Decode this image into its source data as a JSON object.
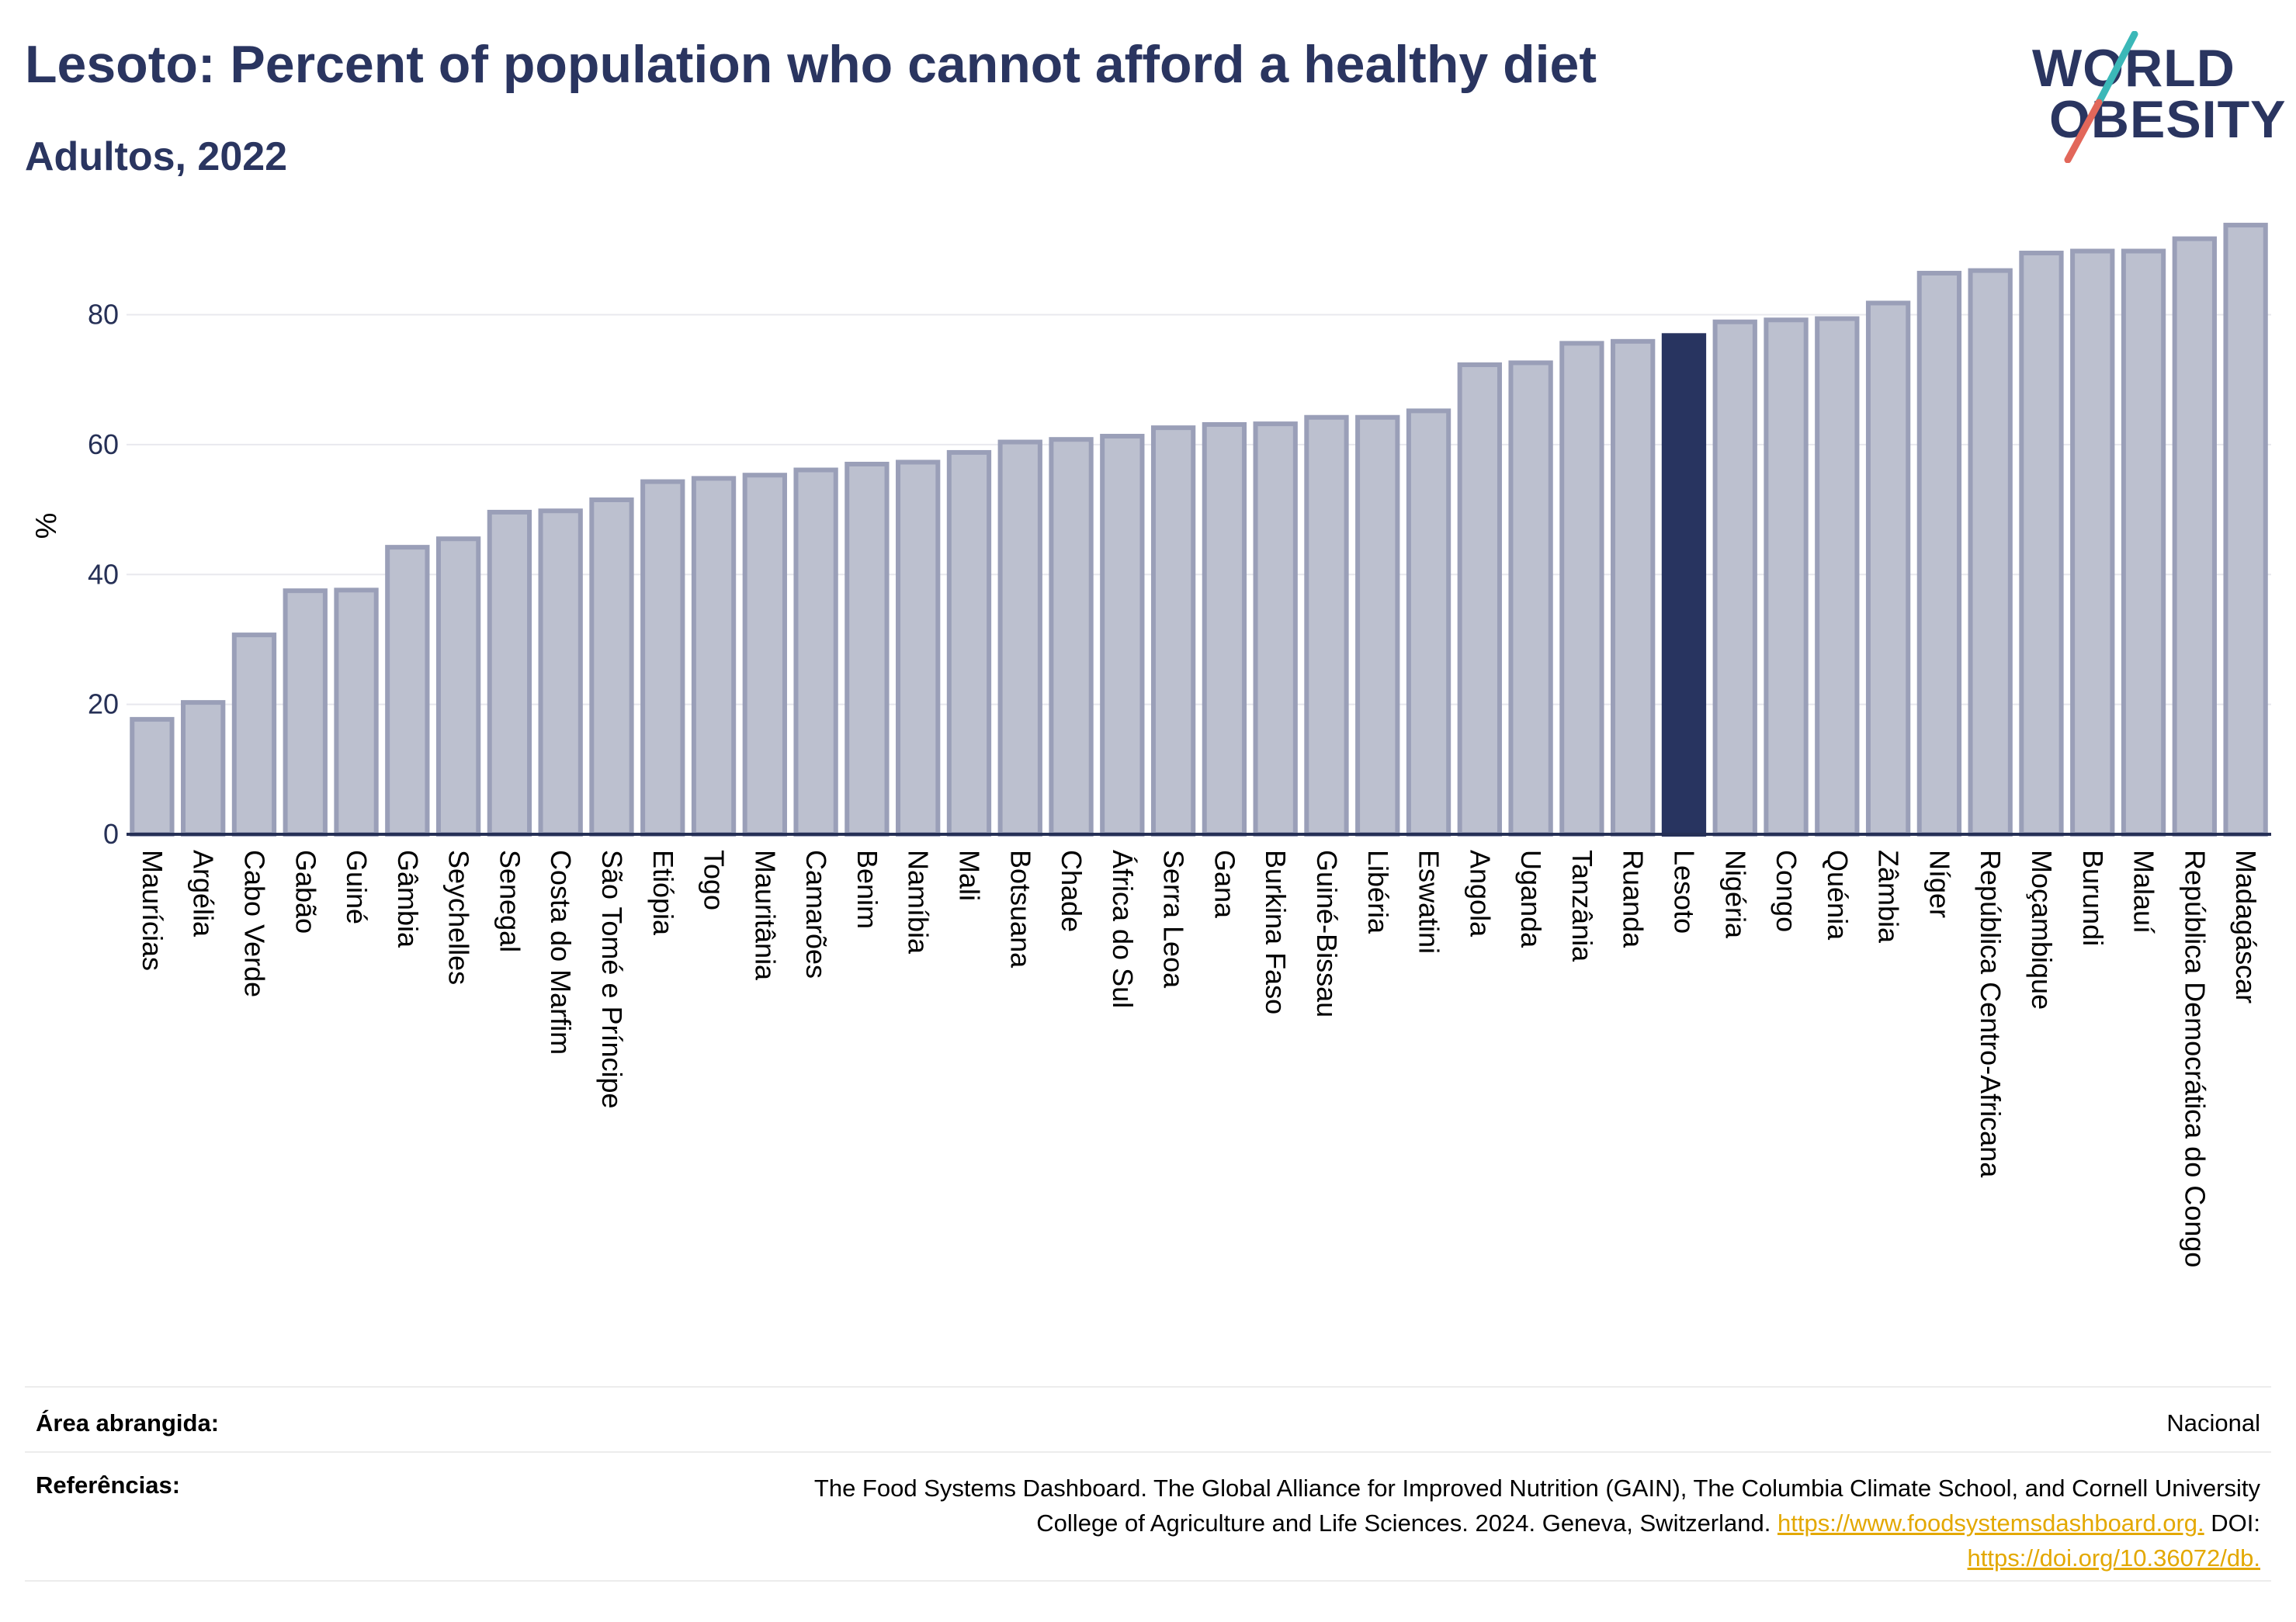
{
  "header": {
    "title": "Lesoto: Percent of population who cannot afford a healthy diet",
    "subtitle": "Adultos, 2022",
    "logo_line1": "WORLD",
    "logo_line2": "OBESITY"
  },
  "chart_data": {
    "type": "bar",
    "ylabel": "%",
    "ylim": [
      0,
      95
    ],
    "yticks": [
      0,
      20,
      40,
      60,
      80
    ],
    "grid": true,
    "highlight": "Lesoto",
    "colors": {
      "bar": "#bcc0cf",
      "bar_border": "#9a9fb8",
      "highlight": "#283460",
      "axis": "#263056",
      "grid": "#e8e8ee"
    },
    "categories": [
      "Maurícias",
      "Argélia",
      "Cabo Verde",
      "Gabão",
      "Guiné",
      "Gâmbia",
      "Seychelles",
      "Senegal",
      "Costa do Marfim",
      "São Tomé e Príncipe",
      "Etiópia",
      "Togo",
      "Mauritânia",
      "Camarões",
      "Benim",
      "Namíbia",
      "Mali",
      "Botsuana",
      "Chade",
      "África do Sul",
      "Serra Leoa",
      "Gana",
      "Burkina Faso",
      "Guiné-Bissau",
      "Libéria",
      "Eswatini",
      "Angola",
      "Uganda",
      "Tanzânia",
      "Ruanda",
      "Lesoto",
      "Nigéria",
      "Congo",
      "Quénia",
      "Zâmbia",
      "Níger",
      "República Centro-Africana",
      "Moçambique",
      "Burundi",
      "Malauí",
      "República Democrática do Congo",
      "Madagáscar"
    ],
    "values": [
      17.7,
      20.3,
      30.7,
      37.5,
      37.6,
      44.2,
      45.5,
      49.6,
      49.8,
      51.5,
      54.3,
      54.8,
      55.3,
      56.1,
      57.0,
      57.3,
      58.8,
      60.4,
      60.8,
      61.3,
      62.6,
      63.1,
      63.2,
      64.2,
      64.2,
      65.2,
      72.3,
      72.6,
      75.6,
      75.9,
      76.8,
      78.9,
      79.2,
      79.4,
      81.8,
      86.4,
      86.8,
      89.5,
      89.8,
      89.8,
      91.7,
      93.8
    ]
  },
  "meta": {
    "area_label": "Área abrangida:",
    "area_value": "Nacional",
    "ref_label": "Referências:",
    "ref_text_1": "The Food Systems Dashboard. The Global Alliance for Improved Nutrition (GAIN), The Columbia Climate School, and Cornell University",
    "ref_text_2a": "College of Agriculture and Life Sciences. 2024. Geneva, Switzerland. ",
    "ref_link_1": "https://www.foodsystemsdashboard.org.",
    "ref_text_2b": " DOI:",
    "ref_link_2": "https://doi.org/10.36072/db."
  }
}
